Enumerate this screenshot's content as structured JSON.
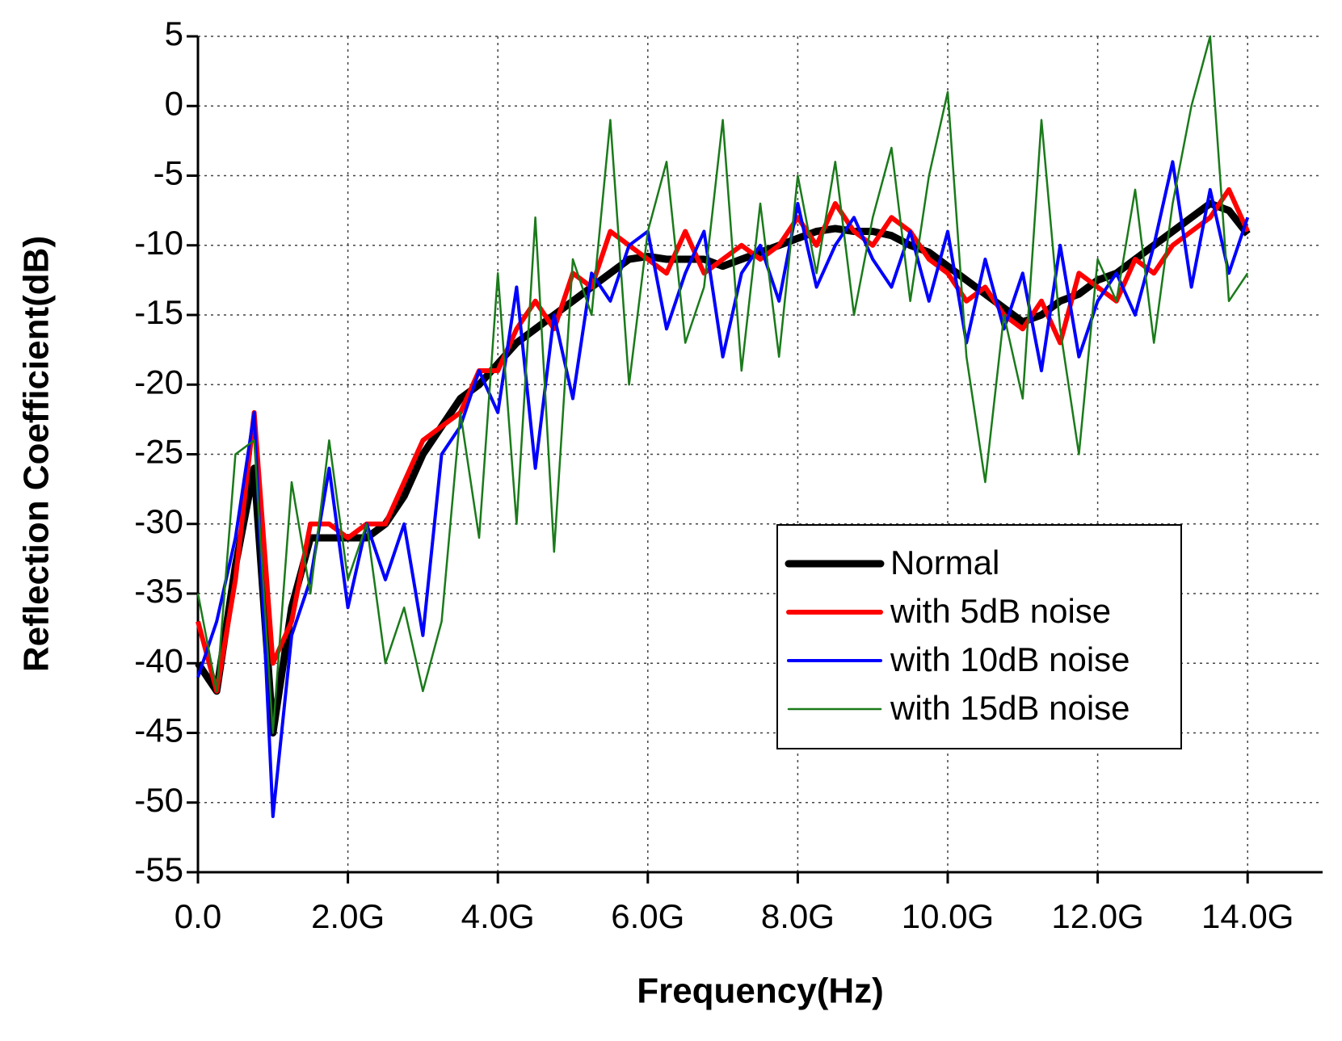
{
  "chart_data": {
    "type": "line",
    "xlabel": "Frequency(Hz)",
    "ylabel": "Reflection Coefficient(dB)",
    "x": [
      0,
      250000000,
      500000000,
      750000000,
      1000000000,
      1250000000,
      1500000000,
      1750000000,
      2000000000,
      2250000000,
      2500000000,
      2750000000,
      3000000000,
      3250000000,
      3500000000,
      3750000000,
      4000000000,
      4250000000,
      4500000000,
      4750000000,
      5000000000,
      5250000000,
      5500000000,
      5750000000,
      6000000000,
      6250000000,
      6500000000,
      6750000000,
      7000000000,
      7250000000,
      7500000000,
      7750000000,
      8000000000,
      8250000000,
      8500000000,
      8750000000,
      9000000000,
      9250000000,
      9500000000,
      9750000000,
      10000000000,
      10250000000,
      10500000000,
      10750000000,
      11000000000,
      11250000000,
      11500000000,
      11750000000,
      12000000000,
      12250000000,
      12500000000,
      12750000000,
      13000000000,
      13250000000,
      13500000000,
      13750000000,
      14000000000
    ],
    "series": [
      {
        "name": "Normal",
        "color": "#000000",
        "values": [
          -40,
          -42,
          -33,
          -26,
          -45,
          -36,
          -31,
          -31,
          -31,
          -31,
          -30,
          -28,
          -25,
          -23,
          -21,
          -20,
          -18.5,
          -17,
          -16,
          -15,
          -14,
          -13,
          -12,
          -11,
          -10.8,
          -11,
          -11,
          -11,
          -11.5,
          -11,
          -10.5,
          -10,
          -9.5,
          -9,
          -8.8,
          -9,
          -9,
          -9.3,
          -10,
          -10.5,
          -11.5,
          -12.5,
          -13.5,
          -14.5,
          -15.5,
          -15,
          -14,
          -13.5,
          -12.5,
          -12,
          -11,
          -10,
          -9,
          -8,
          -7,
          -7.5,
          -9.2
        ]
      },
      {
        "name": "with 5dB noise",
        "color": "#ff0000",
        "values": [
          -37,
          -42,
          -34,
          -22,
          -40,
          -37,
          -30,
          -30,
          -31,
          -30,
          -30,
          -27,
          -24,
          -23,
          -22,
          -19,
          -19,
          -16,
          -14,
          -16,
          -12,
          -13,
          -9,
          -10,
          -11,
          -12,
          -9,
          -12,
          -11,
          -10,
          -11,
          -10,
          -8,
          -10,
          -7,
          -9,
          -10,
          -8,
          -9,
          -11,
          -12,
          -14,
          -13,
          -15,
          -16,
          -14,
          -17,
          -12,
          -13,
          -14,
          -11,
          -12,
          -10,
          -9,
          -8,
          -6,
          -9
        ]
      },
      {
        "name": "with 10dB noise",
        "color": "#0000ff",
        "values": [
          -41,
          -37,
          -31,
          -22,
          -51,
          -38,
          -34,
          -26,
          -36,
          -30,
          -34,
          -30,
          -38,
          -25,
          -23,
          -19,
          -22,
          -13,
          -26,
          -15,
          -21,
          -12,
          -14,
          -10,
          -9,
          -16,
          -12,
          -9,
          -18,
          -12,
          -10,
          -14,
          -7,
          -13,
          -10,
          -8,
          -11,
          -13,
          -9,
          -14,
          -9,
          -17,
          -11,
          -16,
          -12,
          -19,
          -10,
          -18,
          -14,
          -12,
          -15,
          -10,
          -4,
          -13,
          -6,
          -12,
          -8
        ]
      },
      {
        "name": "with 15dB noise",
        "color": "#1a7a1a",
        "values": [
          -35,
          -42,
          -25,
          -24,
          -45,
          -27,
          -35,
          -24,
          -34,
          -30,
          -40,
          -36,
          -42,
          -37,
          -22,
          -31,
          -12,
          -30,
          -8,
          -32,
          -11,
          -15,
          -1,
          -20,
          -9,
          -4,
          -17,
          -13,
          -1,
          -19,
          -7,
          -18,
          -5,
          -12,
          -4,
          -15,
          -8,
          -3,
          -14,
          -5,
          1,
          -18,
          -27,
          -15,
          -21,
          -1,
          -16,
          -25,
          -11,
          -14,
          -6,
          -17,
          -7,
          0,
          5,
          -14,
          -12
        ]
      }
    ],
    "xlim": [
      0,
      15000000000
    ],
    "xticks": [
      {
        "value": 0,
        "label": "0.0"
      },
      {
        "value": 2000000000,
        "label": "2.0G"
      },
      {
        "value": 4000000000,
        "label": "4.0G"
      },
      {
        "value": 6000000000,
        "label": "6.0G"
      },
      {
        "value": 8000000000,
        "label": "8.0G"
      },
      {
        "value": 10000000000,
        "label": "10.0G"
      },
      {
        "value": 12000000000,
        "label": "12.0G"
      },
      {
        "value": 14000000000,
        "label": "14.0G"
      }
    ],
    "ylim": [
      -55,
      5
    ],
    "yticks": [
      -55,
      -50,
      -45,
      -40,
      -35,
      -30,
      -25,
      -20,
      -15,
      -10,
      -5,
      0,
      5
    ],
    "grid": true,
    "legend": "lower right"
  }
}
